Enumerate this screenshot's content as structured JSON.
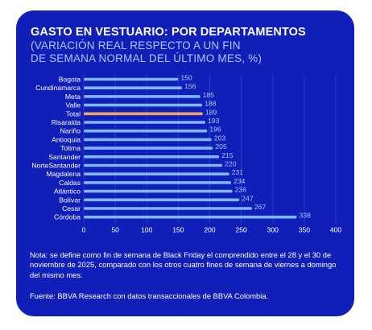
{
  "title": "GASTO EN VESTUARIO: POR DEPARTAMENTOS",
  "subtitle_lines": [
    "(VARIACIÓN REAL RESPECTO A UN FIN",
    "DE SEMANA NORMAL DEL ÚLTIMO MES, %)"
  ],
  "note": "Nota: se define como fin de semana de Black Friday el comprendido entre el 28 y el 30 de noviembre de 2025, comparado con los otros cuatro fines de semana de viernes a domingo del mismo mes.",
  "source": "Fuente: BBVA Research con datos transaccionales de BBVA Colombia.",
  "colors": {
    "background": "#0f1fb7",
    "bar": "#7db8ff",
    "highlight": "#f2a466",
    "value_label": "#a9c9ff",
    "grid": "#3343c6"
  },
  "chart_data": {
    "type": "bar",
    "orientation": "horizontal",
    "categories": [
      "Bogota",
      "Cundinamarca",
      "Meta",
      "Valle",
      "Total",
      "Risaralda",
      "Nariño",
      "Antioquia",
      "Tolima",
      "Santander",
      "NorteSantander",
      "Magdalena",
      "Caldas",
      "Atlántico",
      "Bolívar",
      "Cesar",
      "Córdoba"
    ],
    "values": [
      150,
      156,
      185,
      188,
      189,
      193,
      196,
      203,
      205,
      215,
      220,
      231,
      234,
      236,
      247,
      267,
      338
    ],
    "highlight_category": "Total",
    "xlim": [
      0,
      400
    ],
    "xticks": [
      0,
      50,
      100,
      150,
      200,
      250,
      300,
      350,
      400
    ],
    "grid": true,
    "title": "GASTO EN VESTUARIO: POR DEPARTAMENTOS",
    "xlabel": "",
    "ylabel": ""
  }
}
